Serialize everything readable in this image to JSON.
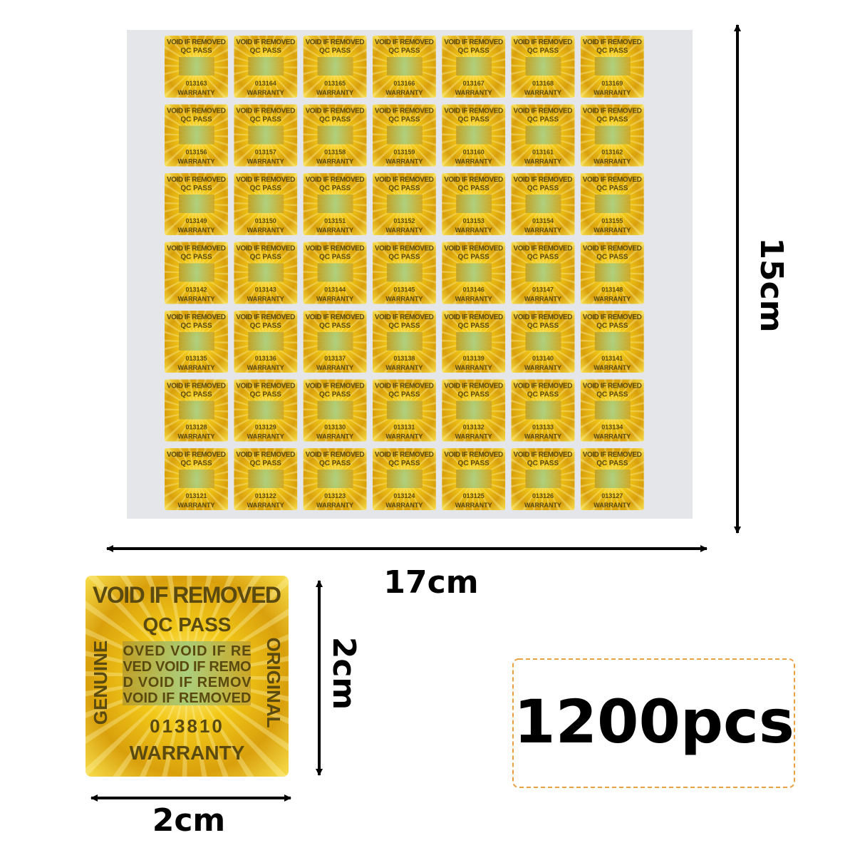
{
  "sticker_text": {
    "top": "VOID IF REMOVED",
    "second": "QC PASS",
    "left": "GENUINE",
    "right": "ORIGINAL",
    "bottom": "WARRANTY"
  },
  "sheet": {
    "serials": [
      [
        "013163",
        "013164",
        "013165",
        "013166",
        "013167",
        "013168",
        "013169"
      ],
      [
        "013156",
        "013157",
        "013158",
        "013159",
        "013160",
        "013161",
        "013162"
      ],
      [
        "013149",
        "013150",
        "013151",
        "013152",
        "013153",
        "013154",
        "013155"
      ],
      [
        "013142",
        "013143",
        "013144",
        "013145",
        "013146",
        "013147",
        "013148"
      ],
      [
        "013135",
        "013136",
        "013137",
        "013138",
        "013139",
        "013140",
        "013141"
      ],
      [
        "013128",
        "013129",
        "013130",
        "013131",
        "013132",
        "013133",
        "013134"
      ],
      [
        "013121",
        "013122",
        "013123",
        "013124",
        "013125",
        "013126",
        "013127"
      ]
    ],
    "width_label": "17cm",
    "height_label": "15cm"
  },
  "detail": {
    "serial": "013810",
    "inner_lines": [
      "OVED VOID IF RE",
      "VED VOID IF REMO",
      "D VOID IF REMOV",
      "VOID IF REMOVED"
    ],
    "width_label": "2cm",
    "height_label": "2cm"
  },
  "quantity": "1200pcs"
}
